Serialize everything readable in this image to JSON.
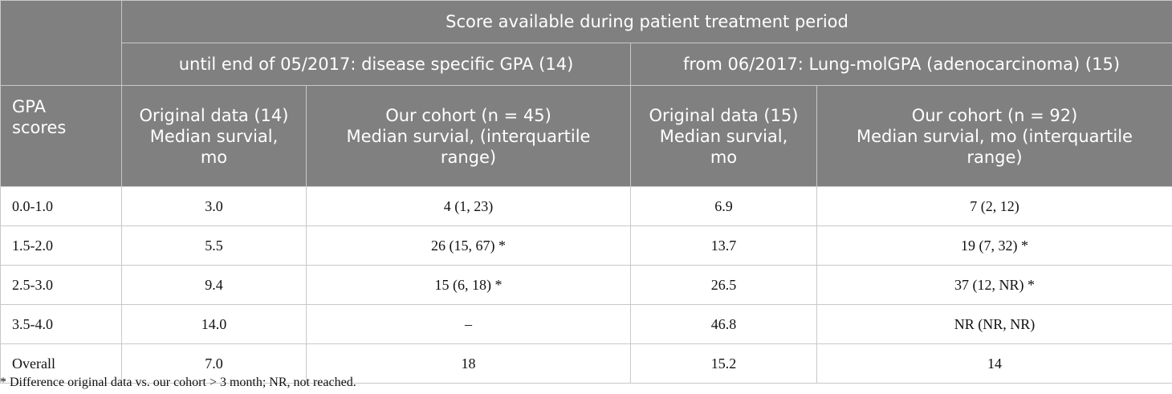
{
  "table": {
    "header": {
      "span_title": "Score available during patient treatment period",
      "group_left": "until end of 05/2017: disease specific GPA (14)",
      "group_right": "from 06/2017: Lung-molGPA (adenocarcinoma) (15)",
      "columns": [
        "GPA\nscores",
        "Original data (14)\nMedian survial,\nmo",
        "Our cohort (n = 45)\nMedian survial, (interquartile\nrange)",
        "Original data (15)\nMedian survial,\nmo",
        "Our cohort (n = 92)\nMedian survial, mo (interquartile\nrange)"
      ]
    },
    "rows": [
      [
        "0.0-1.0",
        "3.0",
        "4 (1, 23)",
        "6.9",
        "7 (2, 12)"
      ],
      [
        "1.5-2.0",
        "5.5",
        "26 (15, 67) *",
        "13.7",
        "19 (7, 32) *"
      ],
      [
        "2.5-3.0",
        "9.4",
        "15 (6, 18) *",
        "26.5",
        "37 (12, NR) *"
      ],
      [
        "3.5-4.0",
        "14.0",
        "–",
        "46.8",
        "NR (NR, NR)"
      ],
      [
        "Overall",
        "7.0",
        "18",
        "15.2",
        "14"
      ]
    ]
  },
  "footnote": "* Difference original data vs. our cohort > 3 month; NR, not reached."
}
